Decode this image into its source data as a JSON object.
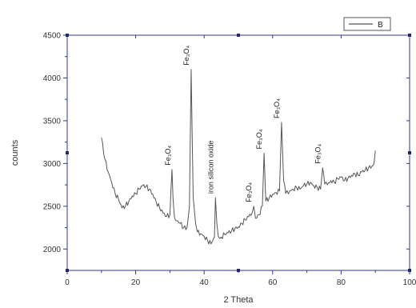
{
  "chart_data": {
    "type": "line",
    "xlabel": "2 Theta",
    "ylabel": "counts",
    "xlim": [
      0,
      100
    ],
    "ylim": [
      1750,
      4500
    ],
    "xticks": [
      "0",
      "20",
      "40",
      "60",
      "80",
      "100"
    ],
    "yticks": [
      "2000",
      "2500",
      "3000",
      "3500",
      "4000",
      "4500"
    ],
    "grid": false,
    "legend_position": "top-right",
    "series": [
      {
        "name": "B",
        "color": "#555555",
        "x": [
          10,
          11,
          12,
          13,
          14,
          15,
          16,
          17,
          18,
          19,
          20,
          21,
          22,
          23,
          24,
          25,
          26,
          27,
          28,
          29,
          30,
          30.6,
          30.9,
          31.3,
          32,
          33,
          34,
          35,
          35.7,
          36.2,
          36.8,
          37.5,
          38,
          39,
          40,
          41,
          42,
          43,
          43.3,
          43.7,
          44.1,
          45,
          46,
          47,
          48,
          49,
          50,
          51,
          52,
          53,
          54,
          54.5,
          55,
          56,
          57,
          57.5,
          58,
          59,
          60,
          61,
          62,
          62.6,
          63.2,
          63.8,
          65,
          66,
          67,
          68,
          69,
          70,
          71,
          72,
          73,
          74,
          74.6,
          75.2,
          76,
          77,
          78,
          79,
          80,
          81,
          82,
          83,
          84,
          85,
          86,
          87,
          88,
          89,
          89.6,
          90
        ],
        "values": [
          3300,
          3050,
          2900,
          2780,
          2650,
          2580,
          2480,
          2500,
          2560,
          2620,
          2650,
          2700,
          2740,
          2730,
          2700,
          2640,
          2550,
          2480,
          2420,
          2380,
          2400,
          2930,
          2600,
          2380,
          2330,
          2300,
          2250,
          2250,
          2500,
          4100,
          2600,
          2300,
          2200,
          2180,
          2150,
          2100,
          2060,
          2140,
          2600,
          2300,
          2150,
          2140,
          2170,
          2190,
          2210,
          2240,
          2260,
          2300,
          2340,
          2380,
          2420,
          2500,
          2360,
          2400,
          2500,
          3120,
          2560,
          2600,
          2640,
          2660,
          2680,
          3480,
          2800,
          2650,
          2680,
          2700,
          2720,
          2700,
          2740,
          2760,
          2780,
          2740,
          2720,
          2700,
          2950,
          2760,
          2750,
          2800,
          2780,
          2820,
          2840,
          2800,
          2830,
          2860,
          2880,
          2860,
          2900,
          2920,
          2950,
          2970,
          3000,
          3150
        ]
      }
    ],
    "annotations": [
      {
        "text": "Fe₃O₄",
        "x": 30.8,
        "y": 2940
      },
      {
        "text": "Fe₃O₄",
        "x": 36.2,
        "y": 4110
      },
      {
        "text": "iron silicon oxide",
        "x": 43.3,
        "y": 2610
      },
      {
        "text": "Fe₃O₄",
        "x": 54.5,
        "y": 2510
      },
      {
        "text": "Fe₃O₄",
        "x": 57.5,
        "y": 3130
      },
      {
        "text": "Fe₃O₄",
        "x": 62.6,
        "y": 3490
      },
      {
        "text": "Fe₃O₄",
        "x": 74.6,
        "y": 2960
      }
    ]
  }
}
